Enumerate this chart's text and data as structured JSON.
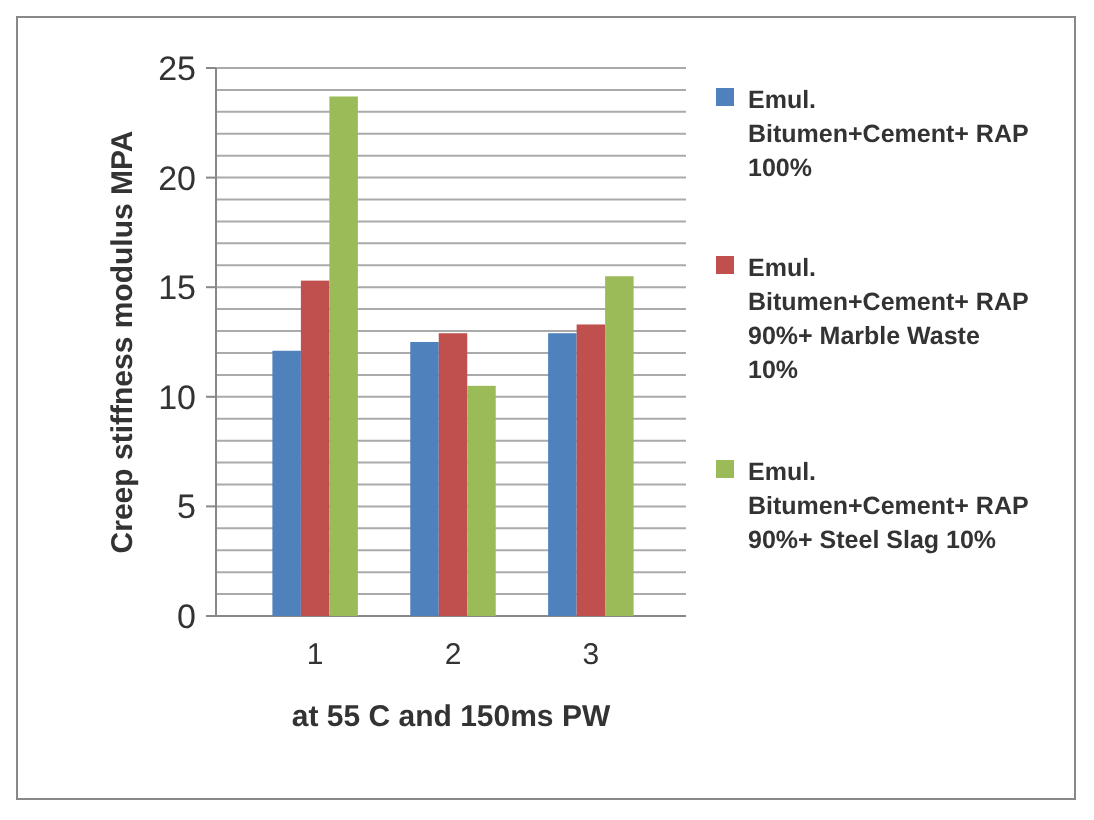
{
  "chart_data": {
    "type": "bar",
    "categories": [
      "1",
      "2",
      "3"
    ],
    "xlabel": "at 55 C and 150ms PW",
    "ylabel": "Creep stiffness modulus MPA",
    "ylim": [
      0,
      25
    ],
    "yticks": [
      0,
      {
        "value": 1,
        "label": null
      },
      {
        "value": 2,
        "label": null
      },
      {
        "value": 3,
        "label": null
      },
      {
        "value": 4,
        "label": null
      },
      5,
      {
        "value": 6,
        "label": null
      },
      {
        "value": 7,
        "label": null
      },
      {
        "value": 8,
        "label": null
      },
      {
        "value": 9,
        "label": null
      },
      10,
      {
        "value": 11,
        "label": null
      },
      {
        "value": 12,
        "label": null
      },
      {
        "value": 13,
        "label": null
      },
      {
        "value": 14,
        "label": null
      },
      15,
      {
        "value": 16,
        "label": null
      },
      {
        "value": 17,
        "label": null
      },
      {
        "value": 18,
        "label": null
      },
      {
        "value": 19,
        "label": null
      },
      20,
      {
        "value": 21,
        "label": null
      },
      {
        "value": 22,
        "label": null
      },
      {
        "value": 23,
        "label": null
      },
      {
        "value": 24,
        "label": null
      },
      25
    ],
    "grid": "y",
    "legend": "right",
    "series": [
      {
        "name": "Emul. Bitumen+Cement+ RAP 100%",
        "color": "#4f81bd",
        "values": [
          12.1,
          12.5,
          12.9
        ]
      },
      {
        "name": "Emul. Bitumen+Cement+ RAP 90%+ Marble Waste 10%",
        "color": "#c0504d",
        "values": [
          15.3,
          12.9,
          13.3
        ]
      },
      {
        "name": "Emul. Bitumen+Cement+ RAP 90%+ Steel Slag 10%",
        "color": "#9bbb59",
        "values": [
          23.7,
          10.5,
          15.5
        ]
      }
    ]
  }
}
